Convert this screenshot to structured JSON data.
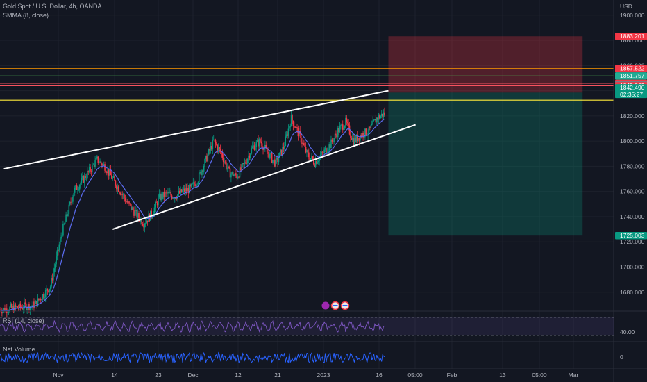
{
  "header": {
    "symbol": "Gold Spot / U.S. Dollar, 4h, OANDA",
    "indicator": "SMMA (8, close)",
    "currency": "USD"
  },
  "rsi_panel": {
    "label": "RSI (14, close)",
    "level": "40.00"
  },
  "volume_panel": {
    "label": "Net Volume",
    "zero": "0"
  },
  "chart_data": {
    "type": "candlestick",
    "timeframe": "4h",
    "x_ticks": [
      "Nov",
      "14",
      "23",
      "Dec",
      "12",
      "21",
      "2023",
      "16",
      "05:00",
      "Feb",
      "13",
      "05:00",
      "Mar"
    ],
    "y_ticks": [
      "1900.000",
      "1880.000",
      "1860.000",
      "1840.000",
      "1820.000",
      "1800.000",
      "1780.000",
      "1760.000",
      "1740.000",
      "1720.000",
      "1700.000",
      "1680.000"
    ],
    "ylim": [
      1665,
      1912
    ],
    "close_path": [
      [
        0,
        1666
      ],
      [
        5,
        1668
      ],
      [
        9,
        1670
      ],
      [
        13,
        1685
      ],
      [
        16,
        1728
      ],
      [
        19,
        1760
      ],
      [
        22,
        1772
      ],
      [
        25,
        1785
      ],
      [
        27,
        1780
      ],
      [
        29,
        1770
      ],
      [
        31,
        1760
      ],
      [
        33,
        1750
      ],
      [
        35,
        1742
      ],
      [
        37,
        1735
      ],
      [
        39,
        1742
      ],
      [
        41,
        1755
      ],
      [
        43,
        1758
      ],
      [
        45,
        1756
      ],
      [
        47,
        1760
      ],
      [
        49,
        1762
      ],
      [
        51,
        1770
      ],
      [
        53,
        1785
      ],
      [
        55,
        1800
      ],
      [
        57,
        1790
      ],
      [
        59,
        1775
      ],
      [
        61,
        1772
      ],
      [
        63,
        1782
      ],
      [
        65,
        1795
      ],
      [
        67,
        1800
      ],
      [
        69,
        1790
      ],
      [
        71,
        1782
      ],
      [
        73,
        1795
      ],
      [
        75,
        1818
      ],
      [
        77,
        1805
      ],
      [
        79,
        1790
      ],
      [
        81,
        1783
      ],
      [
        83,
        1790
      ],
      [
        85,
        1797
      ],
      [
        87,
        1808
      ],
      [
        89,
        1815
      ],
      [
        91,
        1800
      ],
      [
        93,
        1805
      ],
      [
        95,
        1808
      ],
      [
        97,
        1818
      ],
      [
        99,
        1822
      ]
    ],
    "channel": {
      "upper": [
        [
          1,
          1778
        ],
        [
          100,
          1840
        ]
      ],
      "lower": [
        [
          29,
          1730
        ],
        [
          107,
          1813
        ]
      ]
    },
    "levels": [
      {
        "value": 1843.962,
        "label": "1843.962",
        "line": "#f7525f",
        "tag": "#f23645"
      },
      {
        "value": 1845.834,
        "label": "1845.834",
        "line": "#f7525f",
        "tag": "#f23645"
      },
      {
        "value": 1851.757,
        "label": "1851.757",
        "line": "#4caf50",
        "tag": "#22ab94"
      },
      {
        "value": 1857.522,
        "label": "1857.522",
        "line": "#ff9800",
        "tag": "#f23645"
      },
      {
        "value": 1832.5,
        "label": "",
        "line": "#ffeb3b",
        "tag": ""
      }
    ],
    "position": {
      "entry": 1838.5,
      "stop": 1883.201,
      "target": 1725.003,
      "x_start": 100,
      "x_end": 150
    },
    "price_tags": [
      {
        "value": 1883.201,
        "label": "1883.201",
        "color": "#f23645"
      },
      {
        "value": 1857.522,
        "label": "1857.522",
        "color": "#f23645"
      },
      {
        "value": 1851.757,
        "label": "1851.757",
        "color": "#22ab94"
      },
      {
        "value": 1845.834,
        "label": "1845.834",
        "color": "#f23645"
      },
      {
        "value": 1844.661,
        "label": "1844.661",
        "color": "#787b86"
      },
      {
        "value": 1843.962,
        "label": "1843.962",
        "color": "#f23645"
      },
      {
        "value": 1842.49,
        "label": "1842.490",
        "color": "#089981",
        "sub": "02:35:27"
      },
      {
        "value": 1725.003,
        "label": "1725.003",
        "color": "#089981"
      }
    ]
  }
}
